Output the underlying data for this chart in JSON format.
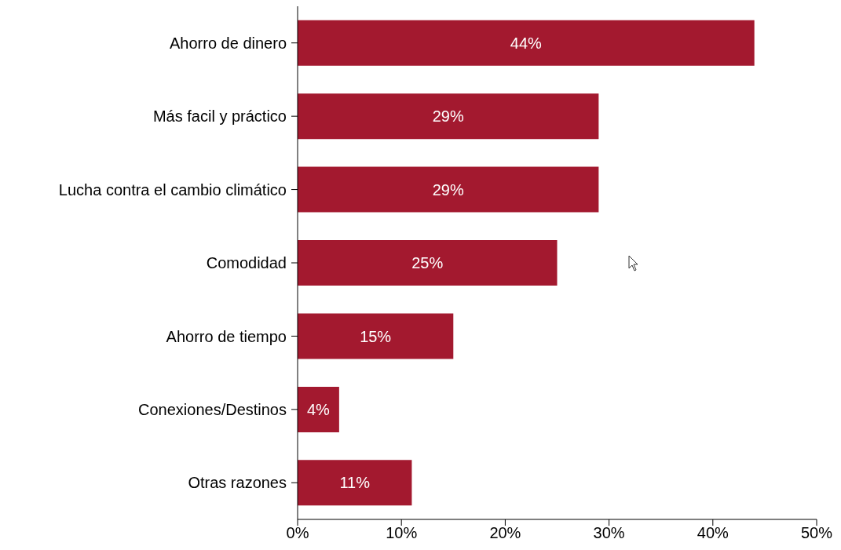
{
  "chart_data": {
    "type": "bar",
    "orientation": "horizontal",
    "categories": [
      "Ahorro de dinero",
      "Más facil y práctico",
      "Lucha contra el cambio climático",
      "Comodidad",
      "Ahorro de tiempo",
      "Conexiones/Destinos",
      "Otras razones"
    ],
    "values": [
      44,
      29,
      29,
      25,
      15,
      4,
      11
    ],
    "value_labels": [
      "44%",
      "29%",
      "29%",
      "25%",
      "15%",
      "4%",
      "11%"
    ],
    "color": "#a3192f",
    "xlim": [
      0,
      50
    ],
    "xticks": [
      {
        "value": 0,
        "label": "0%"
      },
      {
        "value": 10,
        "label": "10%"
      },
      {
        "value": 20,
        "label": "20%"
      },
      {
        "value": 30,
        "label": "30%"
      },
      {
        "value": 40,
        "label": "40%"
      },
      {
        "value": 50,
        "label": "50%"
      }
    ],
    "grid": false,
    "legend": false
  }
}
